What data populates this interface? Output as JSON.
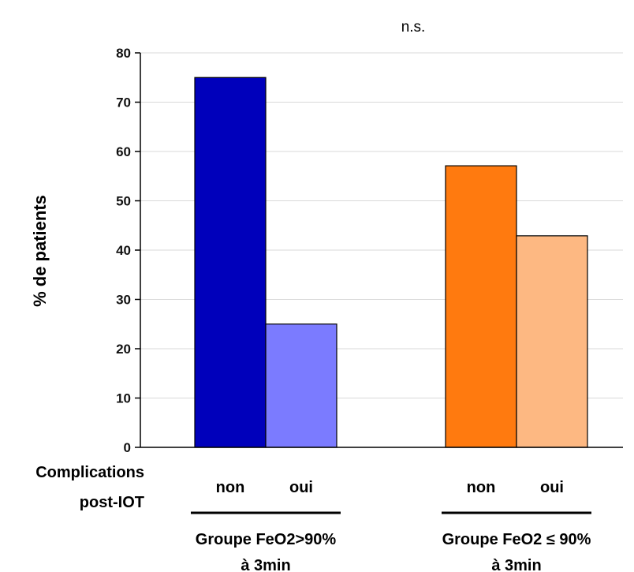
{
  "chart_data": {
    "type": "bar",
    "ylabel": "% de patients",
    "ylim": [
      0,
      80
    ],
    "yticks": [
      0,
      10,
      20,
      30,
      40,
      50,
      60,
      70,
      80
    ],
    "grid": true,
    "annotation": "n.s.",
    "row_title": [
      "Complications",
      "post-IOT"
    ],
    "groups": [
      {
        "label": [
          "Groupe FeO2>90%",
          "à 3min"
        ],
        "bars": [
          {
            "category": "non",
            "value": 75,
            "color": "#0000BB"
          },
          {
            "category": "oui",
            "value": 25,
            "color": "#7B7BFF"
          }
        ]
      },
      {
        "label": [
          "Groupe FeO2 ≤ 90%",
          "à 3min"
        ],
        "bars": [
          {
            "category": "non",
            "value": 57.1,
            "color": "#FF7A0F"
          },
          {
            "category": "oui",
            "value": 42.9,
            "color": "#FDB882"
          }
        ]
      }
    ]
  }
}
